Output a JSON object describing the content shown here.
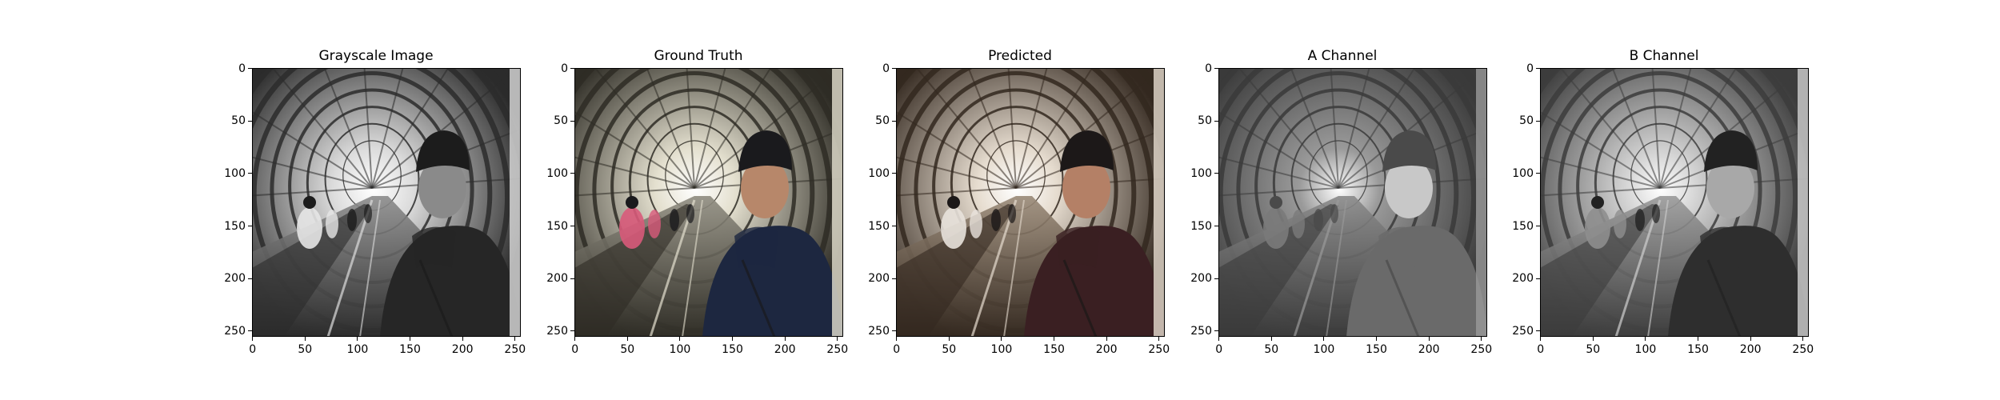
{
  "figure": {
    "panels": [
      {
        "id": "grayscale",
        "title": "Grayscale Image",
        "tone": "gray",
        "palette": {
          "sky": "#dcdcdc",
          "arch": "#2b2b2b",
          "floor": "#8c8c8c",
          "coat": "#262626",
          "face": "#8a8a8a",
          "hat": "#1c1c1c",
          "crowd": "#e6e6e6"
        }
      },
      {
        "id": "ground-truth",
        "title": "Ground Truth",
        "tone": "color",
        "palette": {
          "sky": "#e4e0cf",
          "arch": "#2e2c25",
          "floor": "#8f8c80",
          "coat": "#1d2740",
          "face": "#b7876a",
          "hat": "#1a1a1d",
          "crowd": "#d85a7a"
        }
      },
      {
        "id": "predicted",
        "title": "Predicted",
        "tone": "color",
        "palette": {
          "sky": "#e6dccf",
          "arch": "#33281f",
          "floor": "#9a8a78",
          "coat": "#3a1f22",
          "face": "#b48066",
          "hat": "#1c1818",
          "crowd": "#e8e2dc"
        }
      },
      {
        "id": "a-channel",
        "title": "A Channel",
        "tone": "gray",
        "palette": {
          "sky": "#9a9a9a",
          "arch": "#3a3a3a",
          "floor": "#8a8a8a",
          "coat": "#6a6a6a",
          "face": "#c8c8c8",
          "hat": "#4a4a4a",
          "crowd": "#7a7a7a"
        }
      },
      {
        "id": "b-channel",
        "title": "B Channel",
        "tone": "gray",
        "palette": {
          "sky": "#cfcfcf",
          "arch": "#3c3c3c",
          "floor": "#9a9a9a",
          "coat": "#2e2e2e",
          "face": "#a8a8a8",
          "hat": "#222222",
          "crowd": "#8e8e8e"
        }
      }
    ],
    "axis": {
      "x_ticks": [
        "0",
        "50",
        "100",
        "150",
        "200",
        "250"
      ],
      "y_ticks": [
        "0",
        "50",
        "100",
        "150",
        "200",
        "250"
      ],
      "tick_values": [
        0,
        50,
        100,
        150,
        200,
        250
      ],
      "extent": [
        -0.5,
        255.5
      ]
    }
  }
}
